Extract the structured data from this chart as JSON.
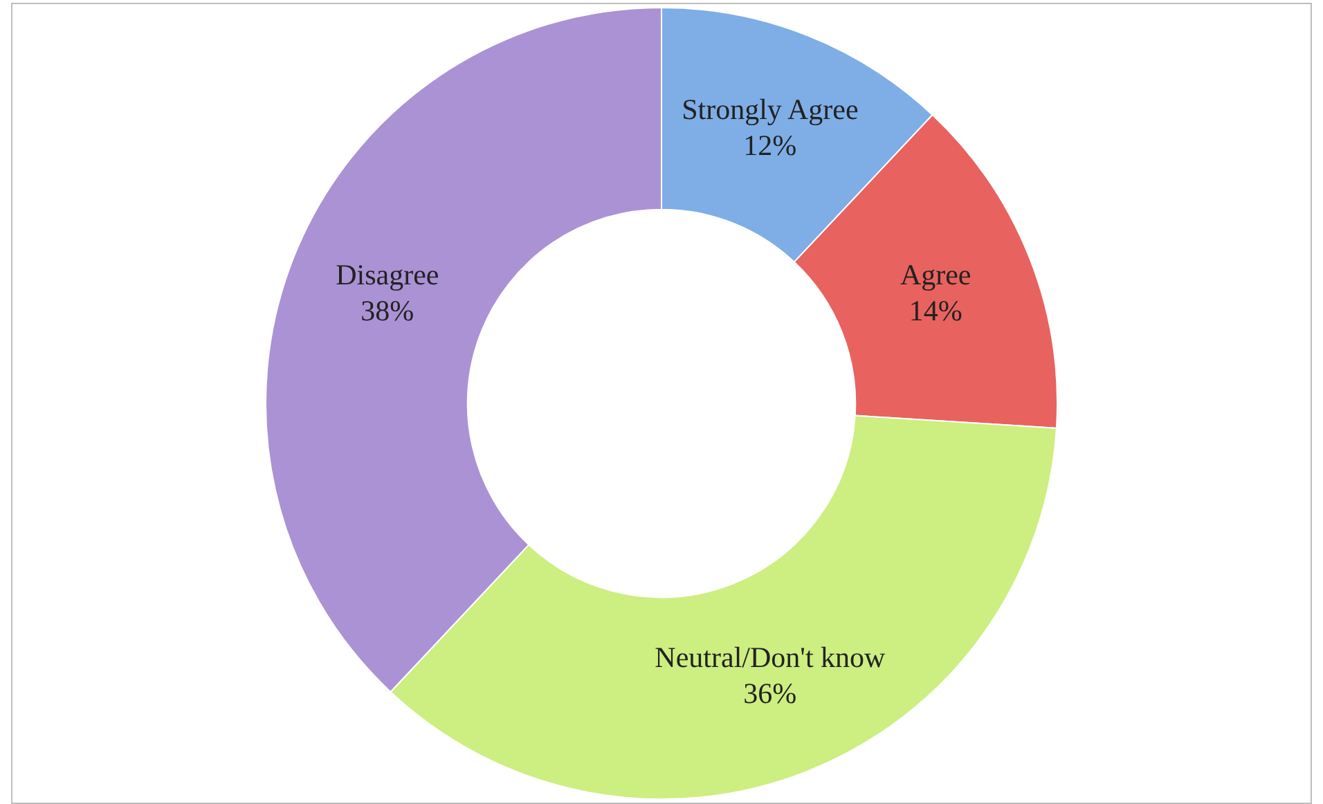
{
  "chart_data": {
    "type": "donut",
    "categories": [
      "Strongly Agree",
      "Agree",
      "Neutral/Don't know",
      "Disagree"
    ],
    "values": [
      12,
      14,
      36,
      38
    ],
    "value_labels": [
      "12%",
      "14%",
      "36%",
      "38%"
    ],
    "colors": [
      "#7fade6",
      "#e8625f",
      "#cdee80",
      "#ab92d4"
    ],
    "legend": false
  }
}
